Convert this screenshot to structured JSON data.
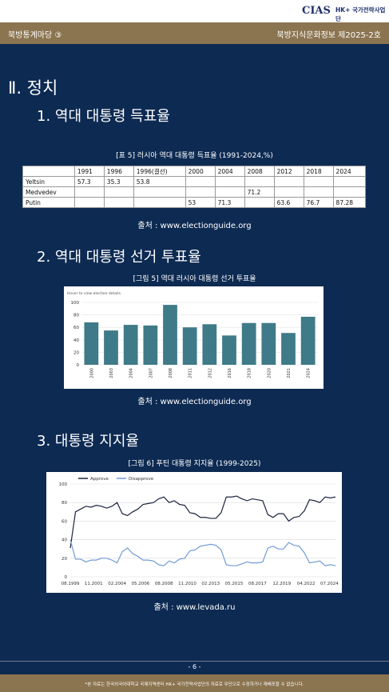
{
  "header": {
    "logo": "CIAS",
    "logo_sub": "HK+ 국가전략사업단",
    "left": "북방통계마당 ③",
    "right": "북방지식문화정보 제2025-2호"
  },
  "section": "Ⅱ. 정치",
  "sub1": "1. 역대 대통령 득표율",
  "table_caption": "[표 5] 러시아 역대 대통령 득표율 (1991-2024,%)",
  "table": {
    "header": [
      null,
      "1991",
      "1996",
      "1996(결선)",
      "2000",
      "2004",
      "2008",
      "2012",
      "2018",
      "2024"
    ],
    "rows": [
      [
        "Yeltsin",
        "57.3",
        "35.3",
        "53.8",
        null,
        null,
        null,
        null,
        null,
        null
      ],
      [
        "Medvedev",
        null,
        null,
        null,
        null,
        null,
        "71.2",
        null,
        null,
        null
      ],
      [
        "Putin",
        null,
        null,
        null,
        "53",
        "71.3",
        null,
        "63.6",
        "76.7",
        "87.28"
      ]
    ]
  },
  "source1": "출처 : www.electionguide.org",
  "sub2": "2. 역대 대통령 선거 투표율",
  "fig5_caption": "[그림 5] 역대 러시아 대통령 선거 투표율",
  "source2": "출처 : www.electionguide.org",
  "sub3": "3. 대통령 지지율",
  "fig6_caption": "[그림 6] 푸틴 대통령 지지율 (1999-2025)",
  "source3": "출처 : www.levada.ru",
  "chart_data": [
    {
      "type": "bar",
      "note": "Hover to view election details.",
      "categories": [
        "2000",
        "2003",
        "2004",
        "2007",
        "2008",
        "2011",
        "2012",
        "2016",
        "2018",
        "2020",
        "2021",
        "2024"
      ],
      "values": [
        68,
        55,
        64,
        63,
        96,
        60,
        65,
        47,
        67,
        67,
        51,
        77
      ],
      "color": "#3f7a89",
      "ylim": [
        0,
        100
      ],
      "yticks": [
        0,
        20,
        40,
        60,
        80,
        100
      ],
      "grid": true
    },
    {
      "type": "line",
      "x": [
        "08.1999",
        "02.2000",
        "08.2000",
        "02.2001",
        "08.2001",
        "02.2002",
        "08.2002",
        "02.2003",
        "08.2003",
        "02.2004",
        "08.2004",
        "02.2005",
        "08.2005",
        "02.2006",
        "08.2006",
        "02.2007",
        "08.2007",
        "02.2008",
        "08.2008",
        "02.2009",
        "08.2009",
        "02.2010",
        "08.2010",
        "02.2011",
        "08.2011",
        "02.2012",
        "08.2012",
        "02.2013",
        "08.2013",
        "02.2014",
        "08.2014",
        "02.2015",
        "08.2015",
        "02.2016",
        "08.2016",
        "02.2017",
        "08.2017",
        "02.2018",
        "08.2018",
        "02.2019",
        "08.2019",
        "02.2020",
        "08.2020",
        "02.2021",
        "08.2021",
        "02.2022",
        "08.2022",
        "02.2023",
        "08.2023",
        "02.2024",
        "08.2024",
        "02.2025"
      ],
      "series": [
        {
          "name": "Approve",
          "color": "#1c2340",
          "values": [
            31,
            70,
            73,
            76,
            75,
            77,
            76,
            74,
            76,
            80,
            68,
            66,
            70,
            73,
            78,
            79,
            80,
            84,
            86,
            80,
            82,
            78,
            77,
            69,
            68,
            64,
            64,
            63,
            63,
            69,
            86,
            86,
            87,
            84,
            82,
            84,
            83,
            82,
            67,
            64,
            68,
            68,
            60,
            64,
            65,
            71,
            83,
            82,
            80,
            86,
            85,
            86
          ]
        },
        {
          "name": "Disapprove",
          "color": "#6f9bd6",
          "values": [
            40,
            19,
            19,
            16,
            18,
            18,
            20,
            20,
            18,
            15,
            27,
            31,
            25,
            22,
            18,
            18,
            17,
            13,
            12,
            17,
            15,
            19,
            20,
            28,
            29,
            33,
            34,
            35,
            34,
            29,
            13,
            12,
            12,
            14,
            16,
            15,
            15,
            16,
            31,
            33,
            30,
            30,
            37,
            34,
            33,
            26,
            15,
            16,
            17,
            12,
            13,
            12
          ]
        }
      ],
      "xticks": [
        "08.1999",
        "11.2001",
        "02.2004",
        "05.2006",
        "08.2008",
        "11.2010",
        "02.2013",
        "05.2015",
        "08.2017",
        "12.2019",
        "04.2022",
        "07.2024"
      ],
      "ylim": [
        0,
        100
      ],
      "yticks": [
        0,
        20,
        40,
        60,
        80,
        100
      ],
      "grid": true
    }
  ],
  "footer": {
    "page": "- 6 -",
    "note": "*본 자료는 한국외국어대학교 국제지역센터 HK+ 국가전략사업단의 자료로 무단으로 수정하거나 재배포할 수 없습니다."
  }
}
